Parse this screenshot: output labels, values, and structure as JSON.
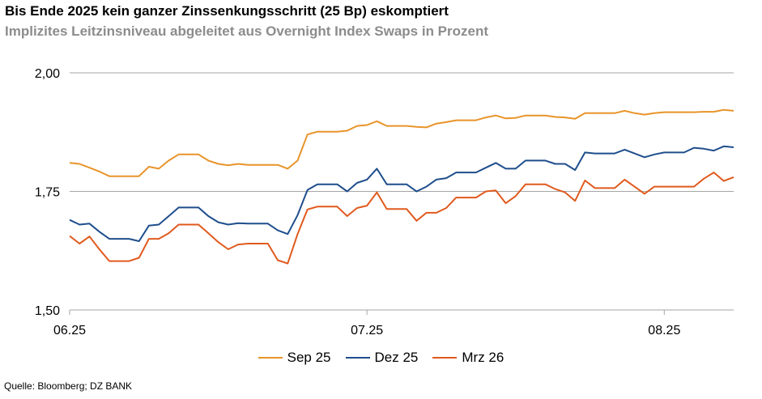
{
  "title": "Bis Ende 2025 kein ganzer Zinssenkungsschritt (25 Bp) eskomptiert",
  "subtitle": "Implizites Leitzinsniveau abgeleitet aus Overnight Index Swaps in Prozent",
  "source": "Quelle: Bloomberg; DZ BANK",
  "chart_data": {
    "type": "line",
    "x": [
      0,
      1,
      2,
      3,
      4,
      5,
      6,
      7,
      8,
      9,
      10,
      11,
      12,
      13,
      14,
      15,
      16,
      17,
      18,
      19,
      20,
      21,
      22,
      23,
      24,
      25,
      26,
      27,
      28,
      29,
      30,
      31,
      32,
      33,
      34,
      35,
      36,
      37,
      38,
      39,
      40,
      41,
      42,
      43,
      44,
      45,
      46,
      47,
      48,
      49,
      50,
      51,
      52,
      53,
      54,
      55,
      56,
      57,
      58,
      59,
      60,
      61,
      62,
      63,
      64,
      65,
      66,
      67
    ],
    "x_ticks": [
      {
        "x": 0,
        "label": "06.25"
      },
      {
        "x": 30,
        "label": "07.25"
      },
      {
        "x": 60,
        "label": "08.25"
      }
    ],
    "y_ticks": [
      {
        "value": 1.5,
        "label": "1,50"
      },
      {
        "value": 1.75,
        "label": "1,75"
      },
      {
        "value": 2.0,
        "label": "2,00"
      }
    ],
    "ylim": [
      1.5,
      2.0
    ],
    "xlim": [
      0,
      67
    ],
    "grid": "horizontal",
    "legend_position": "bottom",
    "series": [
      {
        "name": "Sep 25",
        "color": "#E8942A",
        "values": [
          1.81,
          1.808,
          1.8,
          1.792,
          1.782,
          1.782,
          1.782,
          1.782,
          1.802,
          1.798,
          1.815,
          1.828,
          1.828,
          1.828,
          1.815,
          1.808,
          1.805,
          1.808,
          1.806,
          1.806,
          1.806,
          1.806,
          1.798,
          1.815,
          1.87,
          1.876,
          1.876,
          1.876,
          1.878,
          1.888,
          1.89,
          1.898,
          1.888,
          1.888,
          1.888,
          1.886,
          1.885,
          1.893,
          1.896,
          1.9,
          1.9,
          1.9,
          1.906,
          1.91,
          1.904,
          1.905,
          1.91,
          1.91,
          1.91,
          1.907,
          1.906,
          1.903,
          1.915,
          1.915,
          1.915,
          1.915,
          1.92,
          1.915,
          1.912,
          1.915,
          1.917,
          1.917,
          1.917,
          1.917,
          1.918,
          1.918,
          1.922,
          1.92
        ]
      },
      {
        "name": "Dez 25",
        "color": "#1F4E8C",
        "values": [
          1.69,
          1.68,
          1.682,
          1.665,
          1.65,
          1.65,
          1.65,
          1.645,
          1.678,
          1.68,
          1.698,
          1.716,
          1.716,
          1.716,
          1.698,
          1.685,
          1.68,
          1.683,
          1.682,
          1.682,
          1.682,
          1.668,
          1.66,
          1.7,
          1.753,
          1.765,
          1.765,
          1.765,
          1.75,
          1.768,
          1.775,
          1.798,
          1.765,
          1.765,
          1.765,
          1.75,
          1.76,
          1.775,
          1.778,
          1.79,
          1.79,
          1.79,
          1.8,
          1.81,
          1.798,
          1.798,
          1.815,
          1.815,
          1.815,
          1.808,
          1.808,
          1.795,
          1.832,
          1.83,
          1.83,
          1.83,
          1.838,
          1.83,
          1.822,
          1.828,
          1.832,
          1.832,
          1.832,
          1.842,
          1.84,
          1.836,
          1.845,
          1.843
        ]
      },
      {
        "name": "Mrz 26",
        "color": "#E05A1E",
        "values": [
          1.656,
          1.64,
          1.655,
          1.628,
          1.603,
          1.603,
          1.603,
          1.61,
          1.65,
          1.65,
          1.662,
          1.68,
          1.68,
          1.68,
          1.662,
          1.643,
          1.628,
          1.638,
          1.64,
          1.64,
          1.64,
          1.605,
          1.598,
          1.66,
          1.712,
          1.718,
          1.718,
          1.718,
          1.698,
          1.715,
          1.72,
          1.748,
          1.713,
          1.713,
          1.713,
          1.688,
          1.705,
          1.705,
          1.715,
          1.737,
          1.737,
          1.737,
          1.75,
          1.752,
          1.725,
          1.74,
          1.765,
          1.765,
          1.765,
          1.755,
          1.748,
          1.73,
          1.773,
          1.757,
          1.757,
          1.757,
          1.775,
          1.76,
          1.745,
          1.76,
          1.76,
          1.76,
          1.76,
          1.76,
          1.777,
          1.79,
          1.772,
          1.78
        ]
      }
    ]
  }
}
